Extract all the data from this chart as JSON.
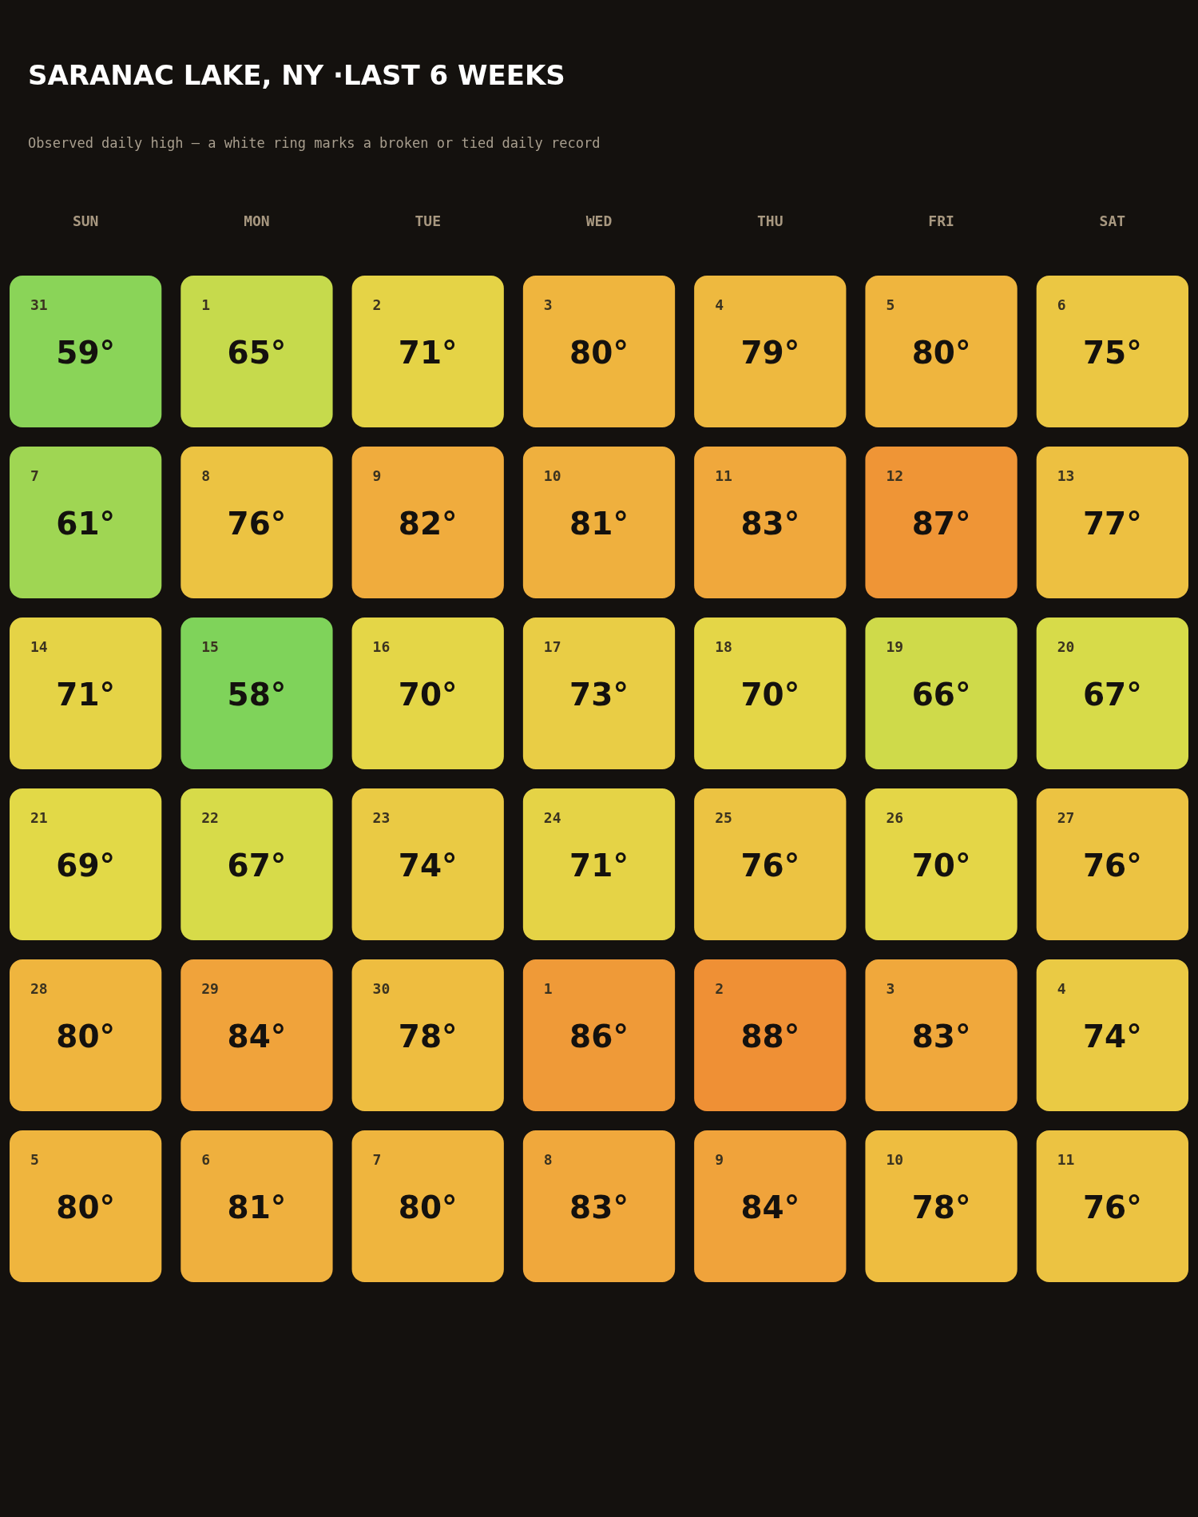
{
  "chart_data": {
    "type": "heatmap",
    "title": "SARANAC LAKE, NY ·LAST 6 WEEKS",
    "subtitle": "Observed daily high — a white ring marks a broken or tied daily record",
    "categories": [
      "SUN",
      "MON",
      "TUE",
      "WED",
      "THU",
      "FRI",
      "SAT"
    ],
    "y_categories": [
      null,
      null,
      null,
      null,
      null,
      null
    ],
    "cells": [
      [
        59,
        65,
        71,
        80,
        79,
        80,
        75
      ],
      [
        61,
        76,
        82,
        81,
        83,
        87,
        77
      ],
      [
        71,
        58,
        70,
        73,
        70,
        66,
        67
      ],
      [
        69,
        67,
        74,
        71,
        76,
        70,
        76
      ],
      [
        80,
        84,
        78,
        86,
        88,
        83,
        74
      ],
      [
        80,
        81,
        80,
        83,
        84,
        78,
        76
      ]
    ],
    "cell_labels": [
      [
        "59°",
        "65°",
        "71°",
        "80°",
        "79°",
        "80°",
        "75°"
      ],
      [
        "61°",
        "76°",
        "82°",
        "81°",
        "83°",
        "87°",
        "77°"
      ],
      [
        "71°",
        "58°",
        "70°",
        "73°",
        "70°",
        "66°",
        "67°"
      ],
      [
        "69°",
        "67°",
        "74°",
        "71°",
        "76°",
        "70°",
        "76°"
      ],
      [
        "80°",
        "84°",
        "78°",
        "86°",
        "88°",
        "83°",
        "74°"
      ],
      [
        "80°",
        "81°",
        "80°",
        "83°",
        "84°",
        "78°",
        "76°"
      ]
    ],
    "annotations": [
      "31",
      "1",
      "2",
      "3",
      "4",
      "5",
      "6",
      "7",
      "8",
      "9",
      "10",
      "11",
      "12",
      "13",
      "14",
      "15",
      "16",
      "17",
      "18",
      "19",
      "20",
      "21",
      "22",
      "23",
      "24",
      "25",
      "26",
      "27",
      "28",
      "29",
      "30",
      "1",
      "2",
      "3",
      "4",
      "5",
      "6",
      "7",
      "8",
      "9",
      "10",
      "11"
    ],
    "colors": [
      "#7fd35a",
      "#b5d84e",
      "#e0dc48",
      "#e9cd45",
      "#eebd40",
      "#f0a83c",
      "#ef9035"
    ],
    "tick_labels": "x"
  }
}
